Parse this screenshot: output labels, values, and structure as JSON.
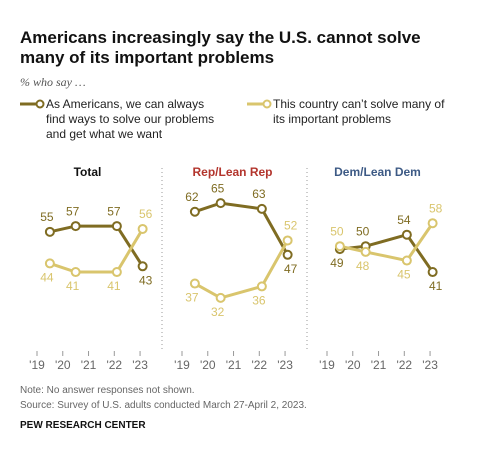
{
  "title": "Americans increasingly say the U.S. cannot solve many of its important problems",
  "subtitle": "% who say …",
  "note": "Note: No answer responses not shown.",
  "source": "Source: Survey of U.S. adults conducted March 27-April 2, 2023.",
  "credit": "PEW RESEARCH CENTER",
  "chart_data": [
    {
      "type": "line",
      "title": "Total",
      "title_color": "#111111",
      "x": [
        2019.5,
        2020.5,
        2022.1,
        2023.1
      ],
      "xlim": [
        2018.34,
        2023.58
      ],
      "xticks": [
        {
          "value": 2019,
          "label": "'19"
        },
        {
          "value": 2020,
          "label": "'20"
        },
        {
          "value": 2021,
          "label": "'21"
        },
        {
          "value": 2022,
          "label": "'22"
        },
        {
          "value": 2023,
          "label": "'23"
        }
      ],
      "ylim": [
        25,
        72
      ],
      "series": [
        {
          "name": "As Americans, we can always find ways to solve our problems and get what we want",
          "color": "#7f6c22",
          "values": [
            55,
            57,
            57,
            43
          ]
        },
        {
          "name": "This country can’t solve many of its important problems",
          "color": "#d9c56d",
          "values": [
            44,
            41,
            41,
            56
          ]
        }
      ]
    },
    {
      "type": "line",
      "title": "Rep/Lean Rep",
      "title_color": "#b3352d",
      "x": [
        2019.5,
        2020.5,
        2022.1,
        2023.1
      ],
      "xlim": [
        2018.34,
        2023.58
      ],
      "xticks": [
        {
          "value": 2019,
          "label": "'19"
        },
        {
          "value": 2020,
          "label": "'20"
        },
        {
          "value": 2021,
          "label": "'21"
        },
        {
          "value": 2022,
          "label": "'22"
        },
        {
          "value": 2023,
          "label": "'23"
        }
      ],
      "ylim": [
        25,
        72
      ],
      "series": [
        {
          "name": "As Americans, we can always find ways to solve our problems and get what we want",
          "color": "#7f6c22",
          "values": [
            62,
            65,
            63,
            47
          ]
        },
        {
          "name": "This country can’t solve many of its important problems",
          "color": "#d9c56d",
          "values": [
            37,
            32,
            36,
            52
          ]
        }
      ]
    },
    {
      "type": "line",
      "title": "Dem/Lean Dem",
      "title_color": "#3d5a85",
      "x": [
        2019.5,
        2020.5,
        2022.1,
        2023.1
      ],
      "xlim": [
        2018.34,
        2023.58
      ],
      "xticks": [
        {
          "value": 2019,
          "label": "'19"
        },
        {
          "value": 2020,
          "label": "'20"
        },
        {
          "value": 2021,
          "label": "'21"
        },
        {
          "value": 2022,
          "label": "'22"
        },
        {
          "value": 2023,
          "label": "'23"
        }
      ],
      "ylim": [
        25,
        72
      ],
      "series": [
        {
          "name": "As Americans, we can always find ways to solve our problems and get what we want",
          "color": "#7f6c22",
          "values": [
            49,
            50,
            54,
            41
          ]
        },
        {
          "name": "This country can’t solve many of its important problems",
          "color": "#d9c56d",
          "values": [
            50,
            48,
            45,
            58
          ]
        }
      ]
    }
  ]
}
